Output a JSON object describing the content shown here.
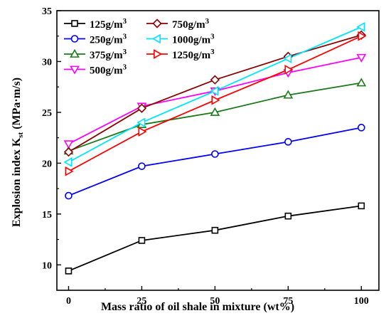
{
  "chart_data": {
    "type": "line",
    "xlabel": "Mass ratio of oil shale in mixture (wt%)",
    "ylabel_main": "Explosion index K",
    "ylabel_sub": "st",
    "ylabel_unit": " (MPa·m/s)",
    "x": [
      0,
      25,
      50,
      75,
      100
    ],
    "x_ticks": [
      "0",
      "25",
      "50",
      "75",
      "100"
    ],
    "y_ticks": [
      "10",
      "15",
      "20",
      "25",
      "30",
      "35"
    ],
    "xlim": [
      -4,
      106
    ],
    "ylim": [
      7.5,
      35
    ],
    "grid": false,
    "legend_placement": "top-left",
    "unit_prefix": "g/m",
    "unit_power": "3",
    "series": [
      {
        "name": "125",
        "color": "#000000",
        "marker": "square",
        "values": [
          9.4,
          12.4,
          13.4,
          14.8,
          15.8
        ]
      },
      {
        "name": "250",
        "color": "#0000FF",
        "marker": "circle",
        "values": [
          16.8,
          19.7,
          20.9,
          22.1,
          23.5
        ]
      },
      {
        "name": "375",
        "color": "#1A7A1A",
        "marker": "triangle-up",
        "values": [
          21.2,
          23.8,
          25.0,
          26.7,
          27.9
        ]
      },
      {
        "name": "500",
        "color": "#FF00FF",
        "marker": "triangle-down",
        "values": [
          21.9,
          25.6,
          27.1,
          28.9,
          30.4
        ]
      },
      {
        "name": "750",
        "color": "#8B0000",
        "marker": "diamond",
        "values": [
          21.1,
          25.4,
          28.2,
          30.5,
          32.6
        ]
      },
      {
        "name": "1000",
        "color": "#00E5FF",
        "marker": "triangle-left",
        "values": [
          20.1,
          24.0,
          27.1,
          30.3,
          33.4
        ]
      },
      {
        "name": "1250",
        "color": "#FF0000",
        "marker": "triangle-right",
        "values": [
          19.2,
          23.1,
          26.2,
          29.2,
          32.5
        ]
      }
    ],
    "legend_left": [
      "125",
      "250",
      "375",
      "500"
    ],
    "legend_right": [
      "750",
      "1000",
      "1250"
    ]
  }
}
